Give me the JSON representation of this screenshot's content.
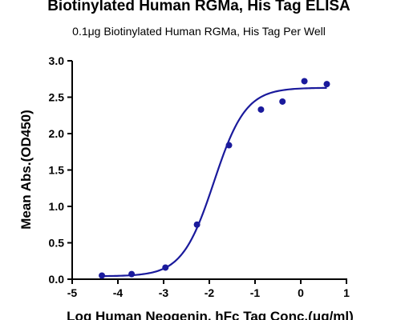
{
  "chart_data": {
    "type": "scatter",
    "title": "Biotinylated Human RGMa, His Tag ELISA",
    "subtitle": "0.1μg Biotinylated Human RGMa, His Tag Per Well",
    "xlabel": "Log Human Neogenin, hFc Tag Conc.(μg/ml)",
    "ylabel": "Mean Abs.(OD450)",
    "xlim": [
      -5,
      1
    ],
    "ylim": [
      0,
      3.0
    ],
    "x_ticks": [
      "-5",
      "-4",
      "-3",
      "-2",
      "-1",
      "0",
      "1"
    ],
    "y_ticks": [
      "0.0",
      "0.5",
      "1.0",
      "1.5",
      "2.0",
      "2.5",
      "3.0"
    ],
    "grid": false,
    "legend": "none",
    "colors": {
      "series": "#1a1a9c",
      "axis": "#000000"
    },
    "series": [
      {
        "x": [
          -4.35,
          -3.7,
          -2.96,
          -2.27,
          -1.57,
          -0.87,
          -0.4,
          0.08,
          0.57
        ],
        "y": [
          0.05,
          0.07,
          0.16,
          0.75,
          1.84,
          2.33,
          2.44,
          2.72,
          2.68
        ]
      }
    ],
    "fit": {
      "model": "4PL",
      "bottom": 0.04,
      "top": 2.63,
      "log_ec50": -1.9,
      "hill_slope": 1.25
    }
  }
}
